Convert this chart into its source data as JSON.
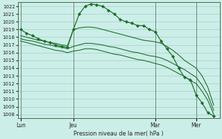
{
  "bg_color": "#cceee8",
  "grid_color": "#aad4cc",
  "line_color": "#1a6e2a",
  "marker_color": "#1a6e2a",
  "xlabel": "Pression niveau de la mer( hPa )",
  "ylim": [
    1007.5,
    1022.5
  ],
  "yticks": [
    1008,
    1009,
    1010,
    1011,
    1012,
    1013,
    1014,
    1015,
    1016,
    1017,
    1018,
    1019,
    1020,
    1021,
    1022
  ],
  "day_labels": [
    "Lun",
    "Jeu",
    "Mar",
    "Mer"
  ],
  "day_positions": [
    0,
    9,
    23,
    30
  ],
  "xlim": [
    -0.5,
    34
  ],
  "series": [
    {
      "x": [
        0,
        1,
        2,
        3,
        4,
        5,
        6,
        7,
        8,
        9,
        10,
        11,
        12,
        13,
        14,
        15,
        16,
        17,
        18,
        19,
        20,
        21,
        22,
        23,
        24,
        25,
        26,
        27,
        28,
        29,
        30,
        31,
        32,
        33
      ],
      "y": [
        1019.0,
        1018.5,
        1018.2,
        1017.8,
        1017.5,
        1017.3,
        1017.0,
        1016.8,
        1016.7,
        1019.0,
        1021.0,
        1022.0,
        1022.3,
        1022.2,
        1022.0,
        1021.5,
        1021.0,
        1020.3,
        1020.0,
        1019.8,
        1019.5,
        1019.5,
        1019.0,
        1018.7,
        1017.5,
        1016.5,
        1015.5,
        1014.0,
        1012.8,
        1012.5,
        1010.5,
        1009.5,
        1008.2,
        1007.8
      ],
      "has_markers": true
    },
    {
      "x": [
        0,
        1,
        2,
        3,
        4,
        5,
        6,
        7,
        8,
        9,
        10,
        11,
        12,
        13,
        14,
        15,
        16,
        17,
        18,
        19,
        20,
        21,
        22,
        23,
        24,
        25,
        26,
        27,
        28,
        29,
        30,
        31,
        32,
        33
      ],
      "y": [
        1018.2,
        1018.0,
        1017.8,
        1017.6,
        1017.5,
        1017.3,
        1017.2,
        1017.0,
        1016.9,
        1019.0,
        1019.2,
        1019.3,
        1019.3,
        1019.2,
        1019.0,
        1018.8,
        1018.6,
        1018.4,
        1018.2,
        1018.0,
        1017.8,
        1017.6,
        1017.5,
        1017.4,
        1017.2,
        1016.8,
        1016.3,
        1015.7,
        1015.0,
        1014.5,
        1014.0,
        1013.0,
        1011.5,
        1009.2
      ],
      "has_markers": false
    },
    {
      "x": [
        0,
        1,
        2,
        3,
        4,
        5,
        6,
        7,
        8,
        9,
        10,
        11,
        12,
        13,
        14,
        15,
        16,
        17,
        18,
        19,
        20,
        21,
        22,
        23,
        24,
        25,
        26,
        27,
        28,
        29,
        30,
        31,
        32,
        33
      ],
      "y": [
        1017.8,
        1017.6,
        1017.5,
        1017.3,
        1017.1,
        1017.0,
        1016.8,
        1016.7,
        1016.5,
        1016.8,
        1017.0,
        1017.2,
        1017.2,
        1017.1,
        1017.0,
        1016.8,
        1016.7,
        1016.5,
        1016.3,
        1016.1,
        1016.0,
        1015.8,
        1015.6,
        1015.5,
        1015.3,
        1015.0,
        1014.6,
        1014.2,
        1013.8,
        1013.3,
        1012.8,
        1011.8,
        1010.5,
        1008.5
      ],
      "has_markers": false
    },
    {
      "x": [
        0,
        1,
        2,
        3,
        4,
        5,
        6,
        7,
        8,
        9,
        10,
        11,
        12,
        13,
        14,
        15,
        16,
        17,
        18,
        19,
        20,
        21,
        22,
        23,
        24,
        25,
        26,
        27,
        28,
        29,
        30,
        31,
        32,
        33
      ],
      "y": [
        1017.5,
        1017.3,
        1017.1,
        1016.9,
        1016.7,
        1016.5,
        1016.3,
        1016.2,
        1016.0,
        1016.2,
        1016.3,
        1016.5,
        1016.5,
        1016.4,
        1016.2,
        1016.0,
        1015.8,
        1015.7,
        1015.5,
        1015.3,
        1015.1,
        1015.0,
        1014.8,
        1014.6,
        1014.4,
        1014.1,
        1013.7,
        1013.3,
        1012.9,
        1012.4,
        1012.0,
        1011.0,
        1009.8,
        1008.0
      ],
      "has_markers": false
    }
  ]
}
